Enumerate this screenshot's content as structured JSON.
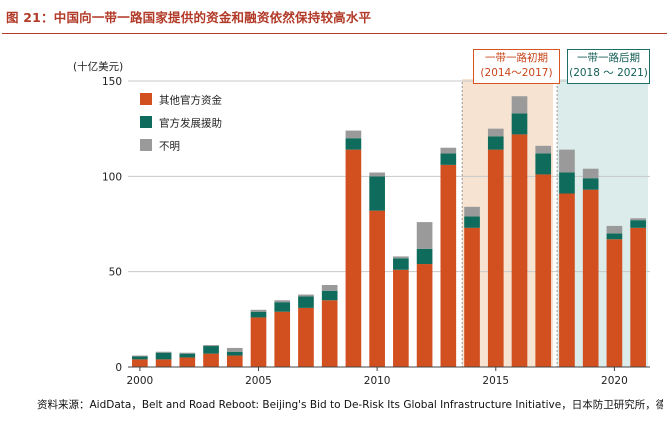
{
  "title": "图 21：中国向一带一路国家提供的资金和融资依然保持较高水平",
  "source": "资料来源：AidData，Belt and Road Reboot: Beijing's Bid to De-Risk Its Global Infrastructure Initiative，日本防卫研究所，德邦研究所",
  "periods": [
    {
      "label": "一带一路初期",
      "range": "(2014～2017)"
    },
    {
      "label": "一带一路后期",
      "range": "(2018 ～ 2021)"
    }
  ],
  "colors": {
    "official_funds": "#d2501f",
    "development_aid": "#0f6b5c",
    "unknown": "#9a9a9a",
    "period1_bg": "#f6e3d2",
    "period2_bg": "#dcecea",
    "title": "#b23a28"
  },
  "chart_data": {
    "type": "bar",
    "stacked": true,
    "ylabel": "(十亿美元)",
    "ylim": [
      0,
      150
    ],
    "yticks": [
      0,
      50,
      100,
      150
    ],
    "xticks": [
      2000,
      2005,
      2010,
      2015,
      2020
    ],
    "grid": "horizontal",
    "legend": "top-left",
    "categories": [
      2000,
      2001,
      2002,
      2003,
      2004,
      2005,
      2006,
      2007,
      2008,
      2009,
      2010,
      2011,
      2012,
      2013,
      2014,
      2015,
      2016,
      2017,
      2018,
      2019,
      2020,
      2021
    ],
    "series": [
      {
        "name": "其他官方资金",
        "values": [
          4,
          4,
          5,
          7,
          6,
          26,
          29,
          31,
          35,
          114,
          82,
          51,
          54,
          106,
          73,
          114,
          122,
          101,
          91,
          93,
          67,
          73
        ]
      },
      {
        "name": "官方发展援助",
        "values": [
          1.5,
          3.5,
          2,
          4,
          2,
          3,
          5,
          6,
          5,
          6,
          18,
          6,
          8,
          6,
          6,
          7,
          11,
          11,
          11,
          6,
          3,
          4
        ]
      },
      {
        "name": "不明",
        "values": [
          0.5,
          0.5,
          0.5,
          0.5,
          2,
          1,
          1,
          1,
          3,
          4,
          2,
          1,
          14,
          3,
          5,
          4,
          9,
          4,
          12,
          5,
          4,
          1
        ]
      }
    ],
    "shaded_periods": [
      [
        2014,
        2017
      ],
      [
        2018,
        2021
      ]
    ]
  }
}
